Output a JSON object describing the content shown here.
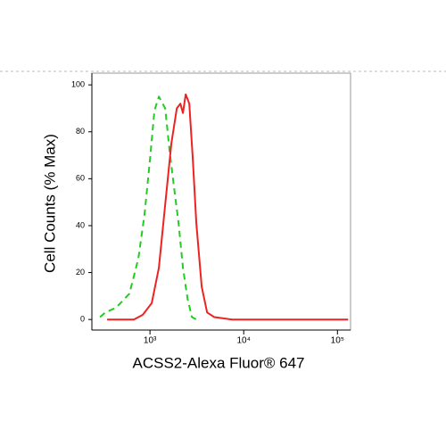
{
  "chart_data": {
    "type": "line",
    "xlabel": "ACSS2-Alexa Fluor® 647",
    "ylabel": "Cell Counts (% Max)",
    "xscale": "log",
    "xlim": [
      240,
      138000
    ],
    "ylim": [
      -4.5,
      105
    ],
    "xticks": [
      {
        "value": 1000,
        "label": "10³"
      },
      {
        "value": 10000,
        "label": "10⁴"
      },
      {
        "value": 100000,
        "label": "10⁵"
      }
    ],
    "yticks": [
      0,
      20,
      40,
      60,
      80,
      100
    ],
    "series": [
      {
        "color": "#22cc22",
        "dash": true,
        "x": [
          293,
          334,
          435,
          604,
          752,
          877,
          1000,
          1116,
          1245,
          1452,
          1620,
          1808,
          2017,
          2250,
          2512,
          2805,
          3126
        ],
        "values": [
          1,
          3,
          5,
          11,
          26,
          45,
          68,
          89,
          95,
          90,
          72,
          56,
          41,
          22,
          9,
          1,
          0
        ]
      },
      {
        "color": "#ee2222",
        "dash": false,
        "x": [
          349,
          674,
          839,
          1045,
          1245,
          1452,
          1692,
          1931,
          2110,
          2250,
          2405,
          2626,
          2865,
          3126,
          3565,
          4073,
          4853,
          7516,
          18060,
          130000
        ],
        "values": [
          0,
          0,
          2,
          7,
          22,
          49,
          75,
          90,
          92,
          88,
          96,
          92,
          68,
          41,
          14,
          3,
          1,
          0,
          0,
          0
        ]
      }
    ]
  }
}
